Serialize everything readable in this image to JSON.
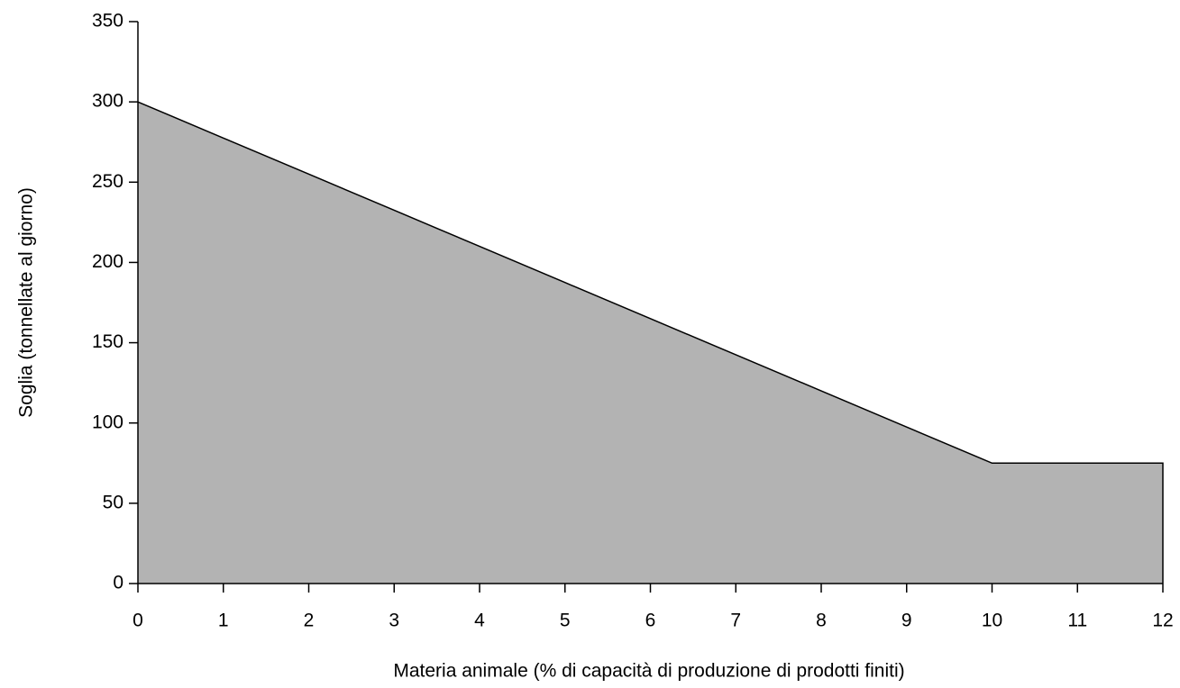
{
  "chart_data": {
    "type": "area",
    "x_label": "Materia animale (% di capacità di produzione di prodotti finiti)",
    "y_label": "Soglia (tonnellate al giorno)",
    "x": [
      0,
      1,
      2,
      3,
      4,
      5,
      6,
      7,
      8,
      9,
      10,
      11,
      12
    ],
    "values": [
      300,
      277.5,
      255,
      232.5,
      210,
      187.5,
      165,
      142.5,
      120,
      97.5,
      75,
      75,
      75
    ],
    "color": "#b3b3b3",
    "line_color": "#000000",
    "xlim": [
      0,
      12
    ],
    "xticks": [
      0,
      1,
      2,
      3,
      4,
      5,
      6,
      7,
      8,
      9,
      10,
      11,
      12
    ],
    "ylim": [
      0,
      350
    ],
    "yticks": [
      0,
      50,
      100,
      150,
      200,
      250,
      300,
      350
    ],
    "grid": false
  }
}
